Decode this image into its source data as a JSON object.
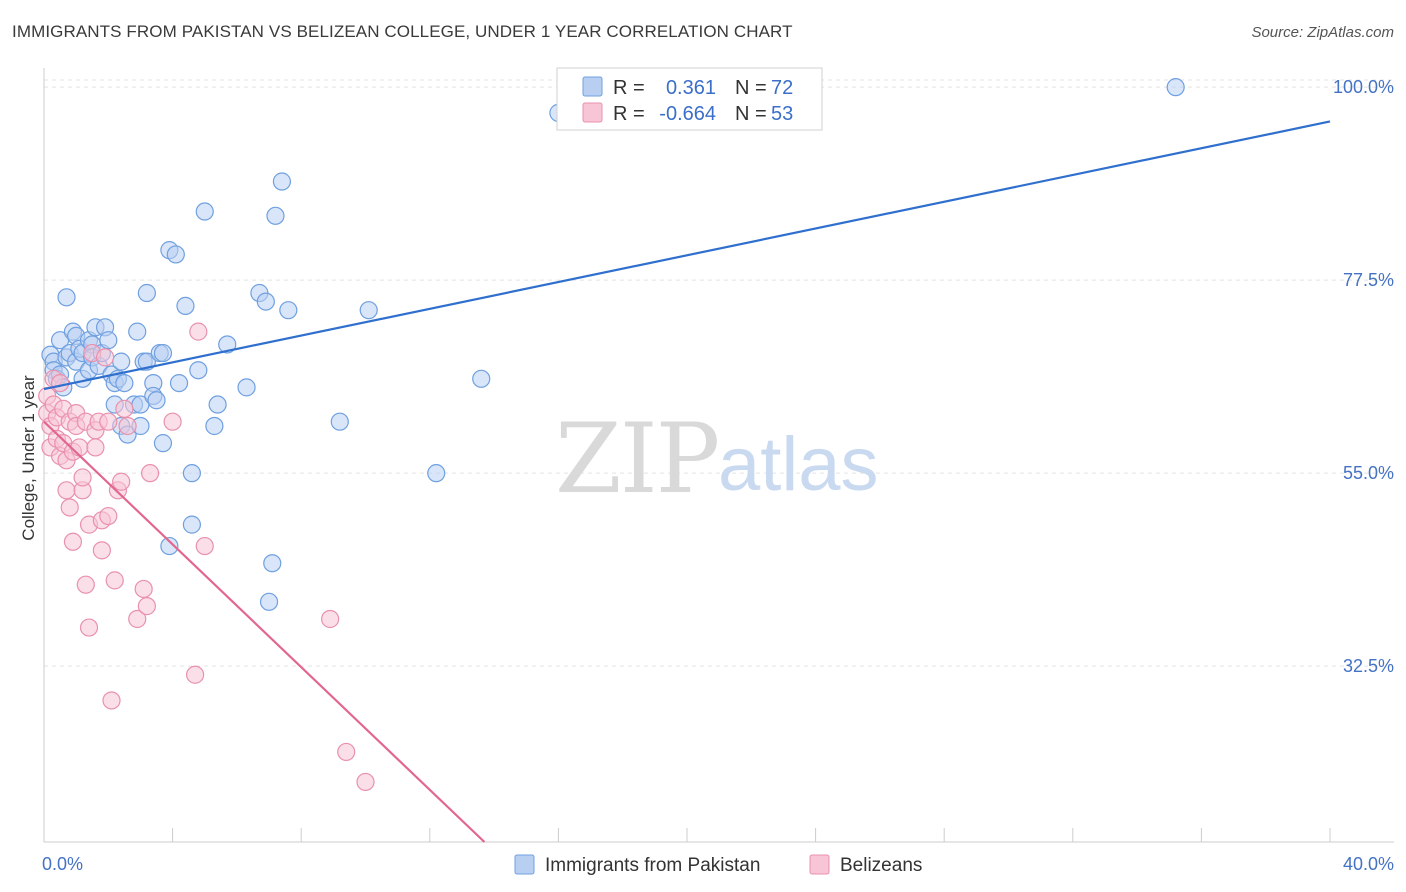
{
  "header": {
    "title": "IMMIGRANTS FROM PAKISTAN VS BELIZEAN COLLEGE, UNDER 1 YEAR CORRELATION CHART",
    "source": "Source: ZipAtlas.com"
  },
  "watermark": {
    "zip": "ZIP",
    "atlas": "atlas"
  },
  "legend": {
    "rows": [
      {
        "r_label": "R =",
        "r_value": "0.361",
        "n_label": "N =",
        "n_value": "72",
        "color": "#6fa0e0",
        "fill": "#b9cff2"
      },
      {
        "r_label": "R =",
        "r_value": "-0.664",
        "n_label": "N =",
        "n_value": "53",
        "color": "#e991ad",
        "fill": "#f7c5d5"
      }
    ]
  },
  "bottom_legend": {
    "items": [
      {
        "label": "Immigrants from Pakistan",
        "fill": "#b9cff2",
        "stroke": "#6fa0e0"
      },
      {
        "label": "Belizeans",
        "fill": "#f7c5d5",
        "stroke": "#e991ad"
      }
    ]
  },
  "chart_data": {
    "type": "scatter",
    "title": "IMMIGRANTS FROM PAKISTAN VS BELIZEAN COLLEGE, UNDER 1 YEAR CORRELATION CHART",
    "xlabel": "",
    "ylabel": "College, Under 1 year",
    "xlim": [
      0,
      40
    ],
    "ylim": [
      12,
      102
    ],
    "x_tick_labels": [
      "0.0%",
      "40.0%"
    ],
    "y_ticks": [
      32.5,
      55.0,
      77.5,
      100.0
    ],
    "y_tick_labels": [
      "32.5%",
      "55.0%",
      "77.5%",
      "100.0%"
    ],
    "grid": true,
    "legend_position": "top-center",
    "series": [
      {
        "name": "Immigrants from Pakistan",
        "color": "#6fa0e0",
        "fill": "#b9cff2",
        "trend": {
          "x": [
            0,
            40
          ],
          "y": [
            64.8,
            96.0
          ],
          "color": "#2f6fce"
        },
        "points": [
          [
            0.2,
            68.8
          ],
          [
            0.3,
            68.0
          ],
          [
            0.3,
            67.0
          ],
          [
            0.4,
            66.0
          ],
          [
            0.5,
            70.5
          ],
          [
            0.5,
            66.5
          ],
          [
            0.6,
            65.0
          ],
          [
            0.7,
            68.5
          ],
          [
            0.8,
            69.0
          ],
          [
            0.7,
            75.5
          ],
          [
            0.9,
            71.5
          ],
          [
            1.0,
            71.0
          ],
          [
            1.0,
            68.0
          ],
          [
            1.1,
            69.5
          ],
          [
            1.2,
            69.0
          ],
          [
            1.2,
            66.0
          ],
          [
            1.4,
            70.5
          ],
          [
            1.4,
            67.0
          ],
          [
            1.5,
            70.0
          ],
          [
            1.5,
            68.5
          ],
          [
            1.6,
            72.0
          ],
          [
            1.7,
            67.5
          ],
          [
            1.8,
            69.0
          ],
          [
            1.9,
            72.0
          ],
          [
            2.0,
            70.5
          ],
          [
            2.1,
            66.5
          ],
          [
            2.2,
            63.0
          ],
          [
            2.2,
            65.5
          ],
          [
            2.3,
            66.0
          ],
          [
            2.4,
            68.0
          ],
          [
            2.4,
            60.5
          ],
          [
            2.5,
            65.5
          ],
          [
            2.6,
            59.5
          ],
          [
            2.8,
            63.0
          ],
          [
            2.9,
            71.5
          ],
          [
            3.0,
            63.0
          ],
          [
            3.0,
            60.5
          ],
          [
            3.1,
            68.0
          ],
          [
            3.2,
            76.0
          ],
          [
            3.2,
            68.0
          ],
          [
            3.4,
            65.5
          ],
          [
            3.4,
            64.0
          ],
          [
            3.5,
            63.5
          ],
          [
            3.6,
            69.0
          ],
          [
            3.7,
            69.0
          ],
          [
            3.7,
            58.5
          ],
          [
            3.9,
            46.5
          ],
          [
            3.9,
            81.0
          ],
          [
            4.1,
            80.5
          ],
          [
            4.2,
            65.5
          ],
          [
            4.4,
            74.5
          ],
          [
            4.6,
            55.0
          ],
          [
            4.6,
            49.0
          ],
          [
            4.8,
            67.0
          ],
          [
            5.0,
            85.5
          ],
          [
            5.3,
            60.5
          ],
          [
            5.4,
            63.0
          ],
          [
            5.7,
            70.0
          ],
          [
            6.3,
            65.0
          ],
          [
            6.7,
            76.0
          ],
          [
            6.9,
            75.0
          ],
          [
            7.0,
            40.0
          ],
          [
            7.1,
            44.5
          ],
          [
            7.2,
            85.0
          ],
          [
            7.4,
            89.0
          ],
          [
            7.6,
            74.0
          ],
          [
            9.2,
            61.0
          ],
          [
            10.1,
            74.0
          ],
          [
            12.2,
            55.0
          ],
          [
            13.6,
            66.0
          ],
          [
            16.0,
            97.0
          ],
          [
            35.2,
            100.0
          ]
        ]
      },
      {
        "name": "Belizeans",
        "color": "#e991ad",
        "fill": "#f7c5d5",
        "trend": {
          "x": [
            0,
            13.7
          ],
          "y": [
            61.0,
            12.0
          ],
          "color": "#e2678e"
        },
        "points": [
          [
            0.1,
            64.0
          ],
          [
            0.1,
            62.0
          ],
          [
            0.2,
            60.5
          ],
          [
            0.2,
            58.0
          ],
          [
            0.3,
            66.0
          ],
          [
            0.3,
            63.0
          ],
          [
            0.4,
            61.5
          ],
          [
            0.4,
            59.0
          ],
          [
            0.5,
            65.5
          ],
          [
            0.5,
            57.0
          ],
          [
            0.6,
            62.5
          ],
          [
            0.6,
            58.5
          ],
          [
            0.7,
            56.5
          ],
          [
            0.7,
            53.0
          ],
          [
            0.8,
            61.0
          ],
          [
            0.8,
            51.0
          ],
          [
            0.9,
            57.5
          ],
          [
            0.9,
            47.0
          ],
          [
            1.0,
            62.0
          ],
          [
            1.0,
            60.5
          ],
          [
            1.1,
            58.0
          ],
          [
            1.2,
            53.0
          ],
          [
            1.2,
            54.5
          ],
          [
            1.3,
            61.0
          ],
          [
            1.3,
            42.0
          ],
          [
            1.4,
            37.0
          ],
          [
            1.4,
            49.0
          ],
          [
            1.5,
            69.0
          ],
          [
            1.6,
            60.0
          ],
          [
            1.6,
            58.0
          ],
          [
            1.7,
            61.0
          ],
          [
            1.8,
            49.5
          ],
          [
            1.8,
            46.0
          ],
          [
            1.9,
            68.5
          ],
          [
            2.0,
            61.0
          ],
          [
            2.0,
            50.0
          ],
          [
            2.1,
            28.5
          ],
          [
            2.2,
            42.5
          ],
          [
            2.3,
            53.0
          ],
          [
            2.4,
            54.0
          ],
          [
            2.5,
            62.5
          ],
          [
            2.6,
            60.5
          ],
          [
            2.9,
            38.0
          ],
          [
            3.1,
            41.5
          ],
          [
            3.2,
            39.5
          ],
          [
            3.3,
            55.0
          ],
          [
            4.0,
            61.0
          ],
          [
            4.7,
            31.5
          ],
          [
            4.8,
            71.5
          ],
          [
            5.0,
            46.5
          ],
          [
            8.9,
            38.0
          ],
          [
            9.4,
            22.5
          ],
          [
            10.0,
            19.0
          ]
        ]
      }
    ]
  }
}
